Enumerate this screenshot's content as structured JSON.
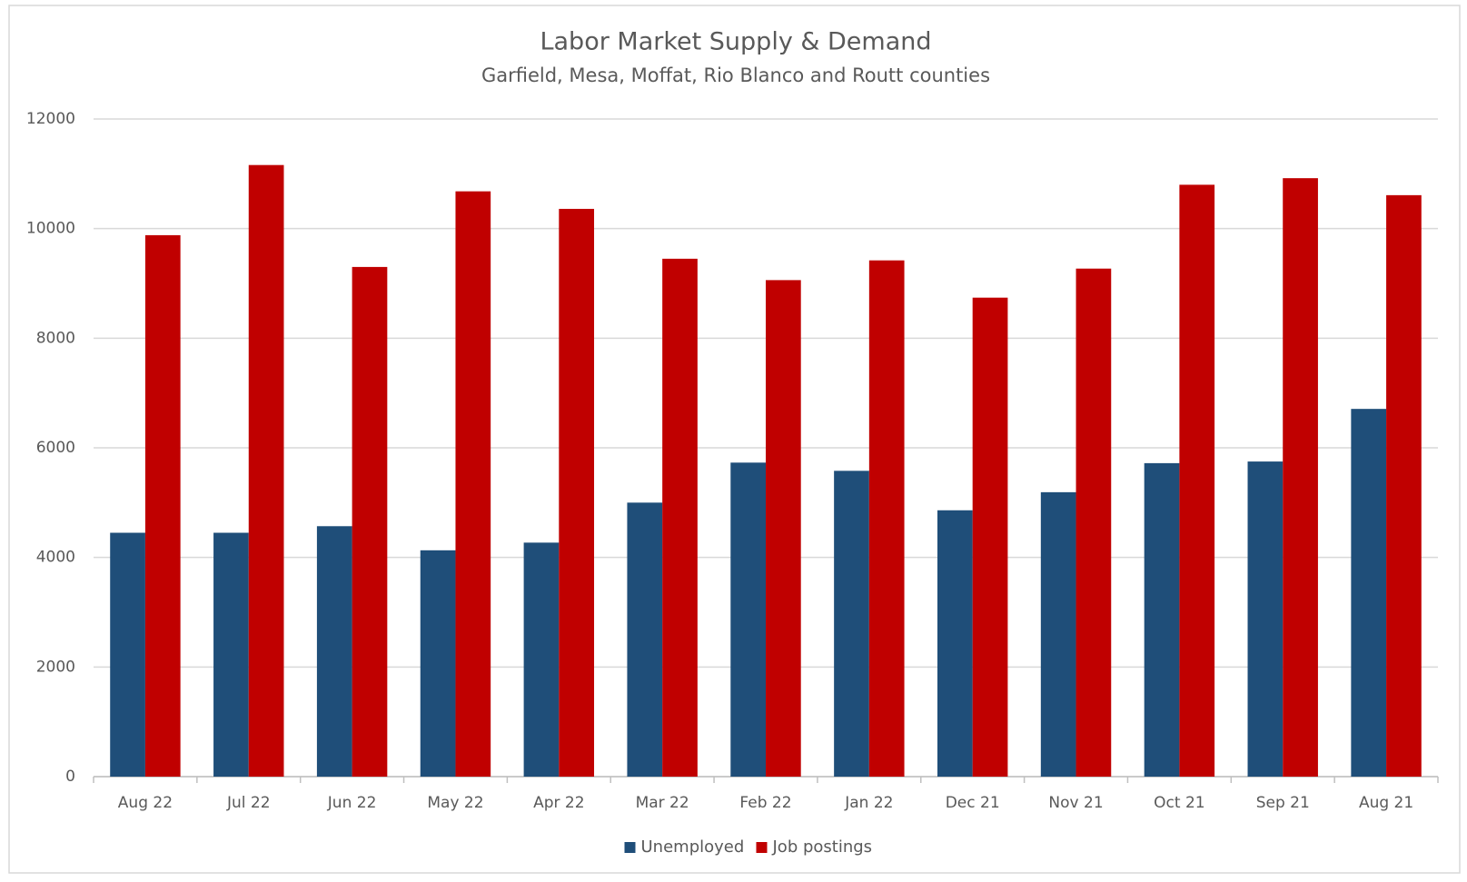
{
  "chart_data": {
    "type": "bar",
    "title": "Labor Market Supply & Demand",
    "subtitle": "Garfield, Mesa, Moffat, Rio Blanco and Routt counties",
    "categories": [
      "Aug 22",
      "Jul 22",
      "Jun 22",
      "May 22",
      "Apr 22",
      "Mar 22",
      "Feb 22",
      "Jan 22",
      "Dec 21",
      "Nov 21",
      "Oct 21",
      "Sep 21",
      "Aug 21"
    ],
    "series": [
      {
        "name": "Unemployed",
        "color": "#1f4e79",
        "values": [
          4450,
          4450,
          4570,
          4130,
          4270,
          5000,
          5730,
          5580,
          4860,
          5190,
          5720,
          5750,
          6710
        ]
      },
      {
        "name": "Job postings",
        "color": "#c00000",
        "values": [
          9880,
          11160,
          9300,
          10680,
          10360,
          9450,
          9060,
          9420,
          8740,
          9270,
          10800,
          10920,
          10610
        ]
      }
    ],
    "ylim": [
      0,
      12000
    ],
    "yticks": [
      0,
      2000,
      4000,
      6000,
      8000,
      10000,
      12000
    ],
    "grid": true,
    "legend": "bottom"
  }
}
